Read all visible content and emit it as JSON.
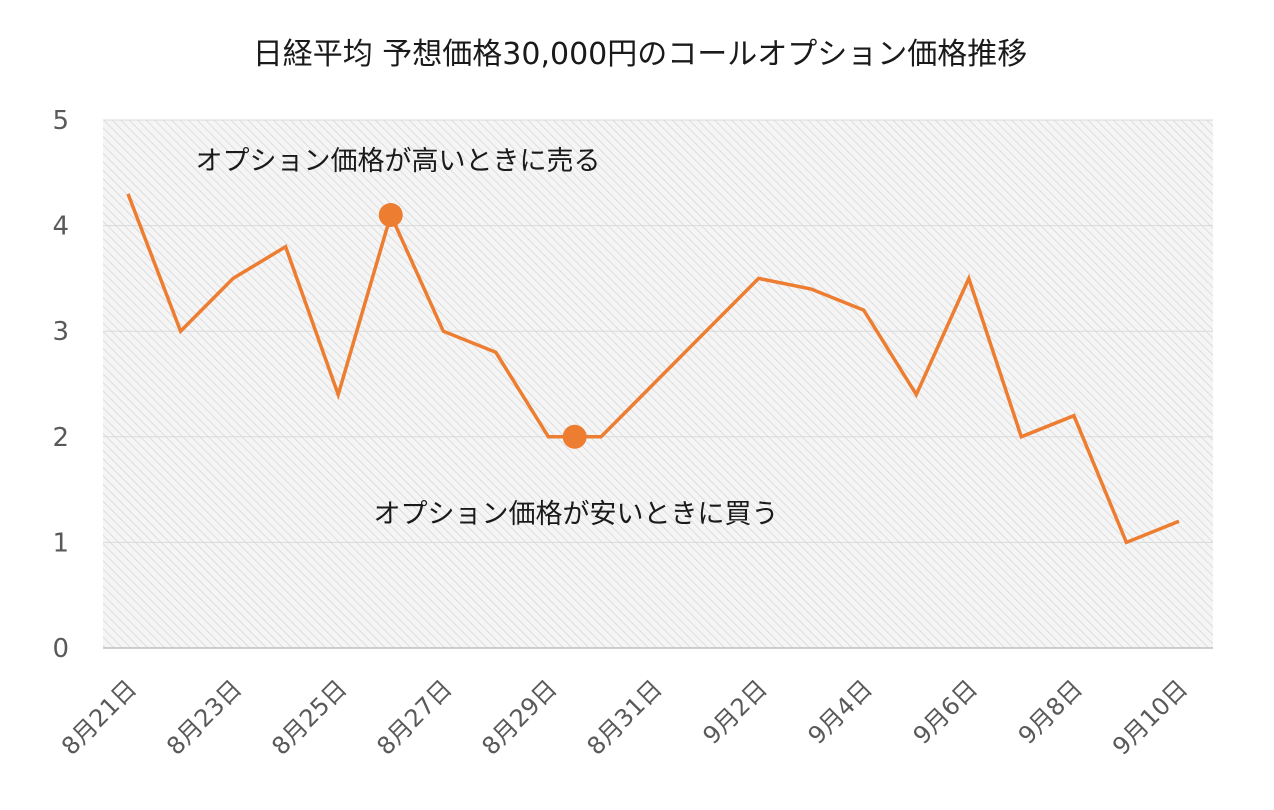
{
  "chart_data": {
    "type": "line",
    "title": "日経平均 予想価格30,000円のコールオプション価格推移",
    "xlabel": "",
    "ylabel": "",
    "ylim": [
      0,
      5
    ],
    "yticks": [
      "0",
      "1",
      "2",
      "3",
      "4",
      "5"
    ],
    "grid": true,
    "legend": "none",
    "x": [
      "8月21日",
      "8月22日",
      "8月23日",
      "8月24日",
      "8月25日",
      "8月26日",
      "8月27日",
      "8月28日",
      "8月29日",
      "8月30日",
      "8月31日",
      "9月1日",
      "9月2日",
      "9月3日",
      "9月4日",
      "9月5日",
      "9月6日",
      "9月7日",
      "9月8日",
      "9月9日",
      "9月10日"
    ],
    "xtick_labels": [
      "8月21日",
      "8月23日",
      "8月25日",
      "8月27日",
      "8月29日",
      "8月31日",
      "9月2日",
      "9月4日",
      "9月6日",
      "9月8日",
      "9月10日"
    ],
    "series": [
      {
        "values": [
          4.3,
          3.0,
          3.5,
          3.8,
          2.4,
          4.1,
          3.0,
          2.8,
          2.0,
          2.0,
          2.5,
          3.0,
          3.5,
          3.4,
          3.2,
          2.4,
          3.5,
          2.0,
          2.2,
          1.0,
          1.2
        ],
        "color": "#ED7D31"
      }
    ],
    "markers": [
      {
        "x": "8月26日",
        "y": 4.1
      },
      {
        "x": "8月29日",
        "y": 2.0,
        "offset": 0.5
      }
    ],
    "annotations": [
      {
        "text": "オプション価格が高いときに売る"
      },
      {
        "text": "オプション価格が安いときに買う"
      }
    ],
    "colors": {
      "line": "#ED7D31",
      "gridline": "#d9d9d9",
      "axis_text": "#595959",
      "plot_background": "#f2f2f2"
    }
  }
}
